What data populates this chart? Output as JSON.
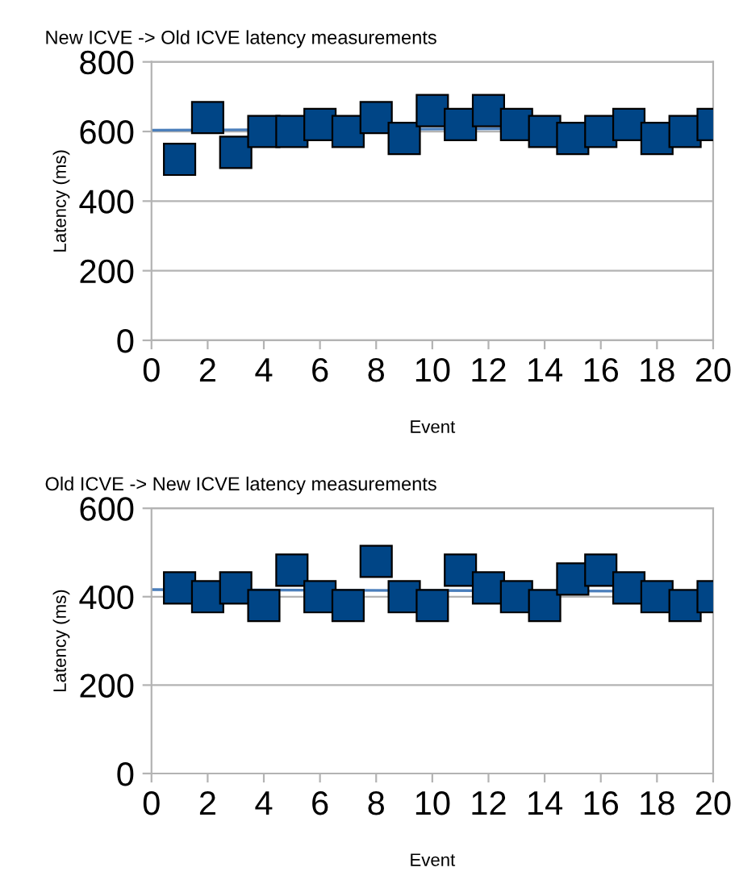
{
  "chart_data": [
    {
      "type": "scatter",
      "title": "New ICVE -> Old ICVE latency measurements",
      "xlabel": "Event",
      "ylabel": "Latency (ms)",
      "xlim": [
        0,
        20
      ],
      "xticks": [
        0,
        2,
        4,
        6,
        8,
        10,
        12,
        14,
        16,
        18,
        20
      ],
      "ylim": [
        0,
        800
      ],
      "yticks": [
        0,
        200,
        400,
        600,
        800
      ],
      "grid": "y",
      "marker": "square",
      "series": [
        {
          "type": "line",
          "color": "#4a7ebb",
          "x": [
            0,
            20
          ],
          "values": [
            604,
            610
          ],
          "line_style": "solid",
          "marker": "none"
        },
        {
          "color": "#004586",
          "x": [
            1,
            2,
            3,
            4,
            5,
            6,
            7,
            8,
            9,
            10,
            11,
            12,
            13,
            14,
            15,
            16,
            17,
            18,
            19,
            20
          ],
          "values": [
            520,
            640,
            540,
            600,
            600,
            620,
            600,
            640,
            580,
            660,
            620,
            660,
            620,
            600,
            580,
            600,
            620,
            580,
            600,
            620
          ]
        }
      ]
    },
    {
      "type": "scatter",
      "title": "Old ICVE -> New ICVE latency measurements",
      "xlabel": "Event",
      "ylabel": "Latency (ms)",
      "xlim": [
        0,
        20
      ],
      "xticks": [
        0,
        2,
        4,
        6,
        8,
        10,
        12,
        14,
        16,
        18,
        20
      ],
      "ylim": [
        0,
        600
      ],
      "yticks": [
        0,
        200,
        400,
        600
      ],
      "grid": "y",
      "marker": "square",
      "series": [
        {
          "type": "line",
          "color": "#4a7ebb",
          "x": [
            0,
            20
          ],
          "values": [
            416,
            412
          ],
          "line_style": "solid",
          "marker": "none"
        },
        {
          "color": "#004586",
          "x": [
            1,
            2,
            3,
            4,
            5,
            6,
            7,
            8,
            9,
            10,
            11,
            12,
            13,
            14,
            15,
            16,
            17,
            18,
            19,
            20
          ],
          "values": [
            420,
            400,
            420,
            380,
            460,
            400,
            380,
            480,
            400,
            380,
            460,
            420,
            400,
            380,
            440,
            460,
            420,
            400,
            380,
            400
          ]
        }
      ]
    }
  ]
}
